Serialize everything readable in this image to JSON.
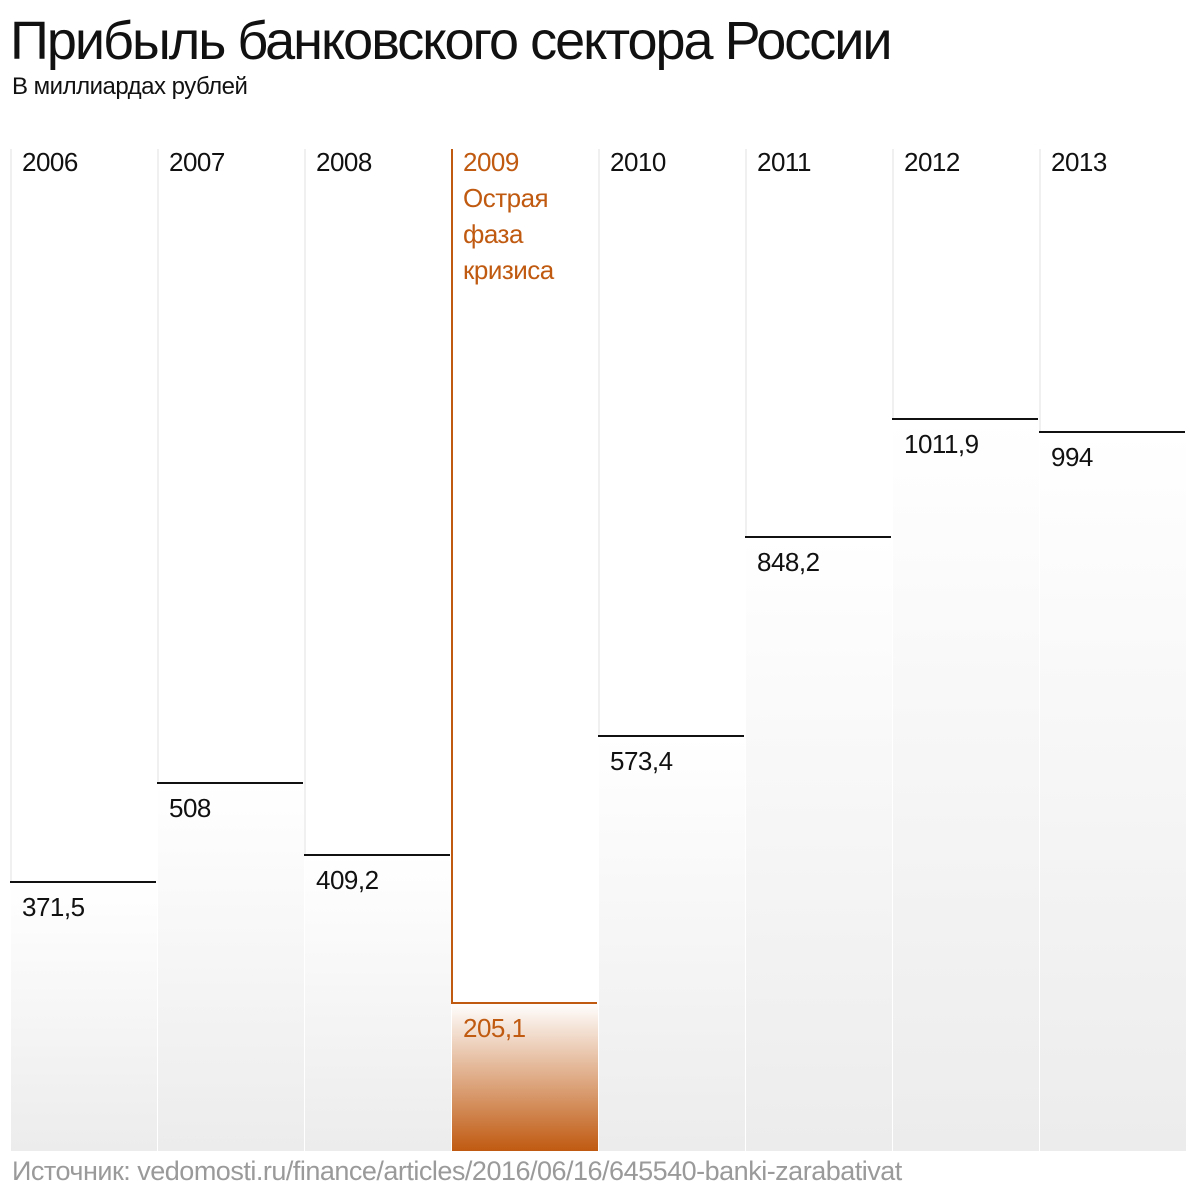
{
  "header": {
    "title": "Прибыль банковского сектора России",
    "subtitle": "В миллиардах рублей"
  },
  "source": "Источник: vedomosti.ru/finance/articles/2016/06/16/645540-banki-zarabativat",
  "colors": {
    "text": "#111111",
    "highlight": "#c05a11",
    "muted": "#9a9a9a",
    "gradient_bottom": "#ececec"
  },
  "chart_data": {
    "type": "bar",
    "categories": [
      "2006",
      "2007",
      "2008",
      "2009",
      "2010",
      "2011",
      "2012",
      "2013"
    ],
    "series": [
      {
        "values": [
          371.5,
          508,
          409.2,
          205.1,
          573.4,
          848.2,
          1011.9,
          994
        ]
      }
    ],
    "value_labels": [
      "371,5",
      "508",
      "409,2",
      "205,1",
      "573,4",
      "848,2",
      "1011,9",
      "994"
    ],
    "highlight": {
      "category": "2009",
      "note": [
        "Острая",
        "фаза",
        "кризиса"
      ]
    },
    "title": "Прибыль банковского сектора России",
    "subtitle": "В миллиардах рублей",
    "xlabel": "",
    "ylabel": "",
    "ylim": [
      0,
      1000
    ],
    "grid": false,
    "legend": "none"
  }
}
